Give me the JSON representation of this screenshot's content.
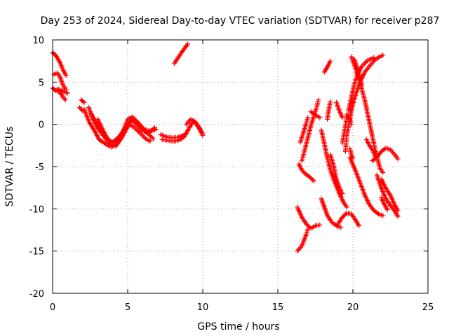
{
  "chart_data": {
    "type": "scatter",
    "title": "Day 253 of 2024, Sidereal Day-to-day VTEC variation (SDTVAR) for receiver p287",
    "xlabel": "GPS time / hours",
    "ylabel": "SDTVAR / TECUs",
    "xlim": [
      0,
      25
    ],
    "ylim": [
      -20,
      10
    ],
    "x_ticks": [
      0,
      5,
      10,
      15,
      20,
      25
    ],
    "y_ticks": [
      -20,
      -15,
      -10,
      -5,
      0,
      5,
      10
    ],
    "grid": true,
    "marker": "+",
    "color": "#ff0000",
    "series": [
      {
        "segments": [
          [
            [
              0.0,
              8.5
            ],
            [
              0.2,
              8.2
            ],
            [
              0.5,
              7.3
            ],
            [
              0.7,
              6.4
            ],
            [
              0.9,
              5.8
            ]
          ],
          [
            [
              0.1,
              5.9
            ],
            [
              0.3,
              6.1
            ],
            [
              0.5,
              5.6
            ],
            [
              0.7,
              4.6
            ],
            [
              0.9,
              4.1
            ]
          ],
          [
            [
              0.0,
              4.3
            ],
            [
              0.2,
              4.0
            ],
            [
              0.5,
              3.8
            ],
            [
              0.7,
              3.2
            ],
            [
              0.85,
              2.9
            ]
          ],
          [
            [
              0.3,
              4.2
            ],
            [
              0.5,
              4.1
            ],
            [
              0.8,
              3.8
            ],
            [
              1.0,
              3.7
            ]
          ],
          [
            [
              1.9,
              2.9
            ],
            [
              2.1,
              2.6
            ]
          ],
          [
            [
              1.8,
              2.0
            ],
            [
              2.0,
              1.6
            ]
          ],
          [
            [
              2.1,
              1.8
            ],
            [
              2.4,
              0.4
            ],
            [
              2.8,
              -0.8
            ],
            [
              3.1,
              -1.8
            ],
            [
              3.6,
              -2.4
            ],
            [
              3.9,
              -2.7
            ],
            [
              4.2,
              -2.4
            ],
            [
              4.6,
              -1.2
            ],
            [
              5.0,
              0.2
            ],
            [
              5.3,
              0.5
            ],
            [
              5.7,
              -0.2
            ],
            [
              6.0,
              -0.8
            ],
            [
              6.4,
              -1.0
            ],
            [
              6.8,
              -0.4
            ]
          ],
          [
            [
              2.4,
              2.0
            ],
            [
              2.7,
              0.6
            ],
            [
              3.1,
              -0.7
            ],
            [
              3.5,
              -1.6
            ],
            [
              3.8,
              -2.3
            ],
            [
              4.2,
              -2.6
            ],
            [
              4.6,
              -1.6
            ],
            [
              5.0,
              -0.3
            ],
            [
              5.3,
              0.6
            ],
            [
              5.6,
              0.3
            ],
            [
              6.0,
              -0.5
            ],
            [
              6.4,
              -1.2
            ],
            [
              6.7,
              -1.7
            ]
          ],
          [
            [
              2.6,
              1.2
            ],
            [
              3.0,
              -0.3
            ],
            [
              3.4,
              -1.2
            ],
            [
              3.7,
              -1.8
            ],
            [
              4.0,
              -2.1
            ],
            [
              4.4,
              -1.5
            ],
            [
              4.8,
              -0.6
            ],
            [
              5.1,
              0.0
            ],
            [
              5.4,
              -0.3
            ],
            [
              5.8,
              -1.0
            ],
            [
              6.2,
              -1.7
            ],
            [
              6.5,
              -2.0
            ]
          ],
          [
            [
              3.0,
              0.6
            ],
            [
              3.3,
              -0.5
            ],
            [
              3.6,
              -1.5
            ],
            [
              3.9,
              -2.2
            ],
            [
              4.3,
              -2.0
            ],
            [
              4.7,
              -0.8
            ],
            [
              5.0,
              0.6
            ],
            [
              5.3,
              0.9
            ],
            [
              5.7,
              0.2
            ],
            [
              6.1,
              -0.6
            ],
            [
              6.5,
              -0.8
            ],
            [
              6.9,
              -0.6
            ]
          ],
          [
            [
              7.2,
              -1.2
            ],
            [
              7.6,
              -1.5
            ],
            [
              8.0,
              -1.6
            ],
            [
              8.4,
              -1.5
            ],
            [
              8.8,
              -1.2
            ]
          ],
          [
            [
              7.3,
              -1.8
            ],
            [
              7.7,
              -1.9
            ],
            [
              8.1,
              -2.0
            ],
            [
              8.5,
              -1.8
            ],
            [
              8.8,
              -1.4
            ],
            [
              9.1,
              -0.4
            ],
            [
              9.4,
              0.4
            ],
            [
              9.7,
              -0.2
            ],
            [
              10.0,
              -1.1
            ]
          ],
          [
            [
              8.9,
              0.0
            ],
            [
              9.2,
              0.6
            ],
            [
              9.5,
              0.3
            ],
            [
              9.8,
              -0.6
            ],
            [
              10.0,
              -1.3
            ]
          ],
          [
            [
              8.1,
              7.2
            ],
            [
              8.4,
              8.0
            ],
            [
              8.7,
              8.8
            ],
            [
              9.0,
              9.5
            ]
          ],
          [
            [
              16.3,
              -9.8
            ],
            [
              16.6,
              -11.0
            ],
            [
              16.9,
              -11.8
            ],
            [
              17.2,
              -12.3
            ],
            [
              17.5,
              -12.0
            ],
            [
              17.8,
              -11.9
            ]
          ],
          [
            [
              16.3,
              -15.0
            ],
            [
              16.6,
              -14.4
            ],
            [
              16.9,
              -13.0
            ],
            [
              17.0,
              -12.4
            ]
          ],
          [
            [
              16.4,
              -4.7
            ],
            [
              16.6,
              -5.4
            ],
            [
              16.8,
              -5.8
            ],
            [
              17.1,
              -6.2
            ],
            [
              17.4,
              -6.7
            ]
          ],
          [
            [
              16.5,
              -2.1
            ],
            [
              16.7,
              -1.0
            ],
            [
              16.9,
              0.2
            ],
            [
              17.0,
              0.8
            ]
          ],
          [
            [
              16.6,
              -4.3
            ],
            [
              16.8,
              -3.0
            ],
            [
              17.0,
              -1.6
            ],
            [
              17.2,
              -0.2
            ],
            [
              17.4,
              1.0
            ],
            [
              17.6,
              2.1
            ],
            [
              17.7,
              2.9
            ]
          ],
          [
            [
              17.2,
              1.5
            ],
            [
              17.6,
              1.0
            ],
            [
              17.8,
              0.8
            ]
          ],
          [
            [
              17.9,
              -8.8
            ],
            [
              18.1,
              -9.8
            ],
            [
              18.3,
              -10.8
            ],
            [
              18.6,
              -11.6
            ],
            [
              19.0,
              -12.1
            ],
            [
              19.2,
              -12.2
            ]
          ],
          [
            [
              17.9,
              -0.7
            ],
            [
              18.1,
              -2.3
            ],
            [
              18.3,
              -4.0
            ],
            [
              18.5,
              -5.4
            ],
            [
              18.8,
              -6.9
            ],
            [
              19.1,
              -8.2
            ],
            [
              19.4,
              -9.3
            ],
            [
              19.6,
              -9.8
            ]
          ],
          [
            [
              18.3,
              0.6
            ],
            [
              18.4,
              1.8
            ],
            [
              18.5,
              2.7
            ]
          ],
          [
            [
              18.1,
              6.2
            ],
            [
              18.3,
              6.8
            ],
            [
              18.5,
              7.5
            ]
          ],
          [
            [
              18.5,
              -3.6
            ],
            [
              18.7,
              -4.8
            ],
            [
              18.9,
              -6.5
            ],
            [
              19.1,
              -7.5
            ],
            [
              19.3,
              -8.2
            ]
          ],
          [
            [
              19.0,
              -11.8
            ],
            [
              19.3,
              -11.0
            ],
            [
              19.6,
              -10.5
            ],
            [
              19.9,
              -10.6
            ],
            [
              20.2,
              -11.4
            ],
            [
              20.4,
              -12.0
            ]
          ],
          [
            [
              18.9,
              2.6
            ],
            [
              19.1,
              1.6
            ],
            [
              19.3,
              0.8
            ]
          ],
          [
            [
              19.5,
              -3.2
            ],
            [
              19.6,
              -1.3
            ],
            [
              19.8,
              0.7
            ],
            [
              20.0,
              2.4
            ],
            [
              20.2,
              3.6
            ],
            [
              20.5,
              5.1
            ],
            [
              20.8,
              6.2
            ],
            [
              21.2,
              7.1
            ],
            [
              21.5,
              7.7
            ],
            [
              21.8,
              8.0
            ],
            [
              22.0,
              8.2
            ]
          ],
          [
            [
              19.7,
              1.6
            ],
            [
              19.9,
              3.2
            ],
            [
              20.1,
              4.8
            ],
            [
              20.3,
              5.9
            ],
            [
              20.6,
              6.9
            ],
            [
              21.0,
              7.6
            ],
            [
              21.4,
              7.9
            ]
          ],
          [
            [
              19.3,
              -2.2
            ],
            [
              19.5,
              -0.2
            ],
            [
              19.6,
              0.9
            ]
          ],
          [
            [
              19.8,
              -2.9
            ],
            [
              19.9,
              -3.6
            ],
            [
              20.0,
              -4.0
            ]
          ],
          [
            [
              19.6,
              1.2
            ],
            [
              19.8,
              0.6
            ],
            [
              19.9,
              0.0
            ]
          ],
          [
            [
              19.9,
              8.0
            ],
            [
              20.2,
              6.5
            ],
            [
              20.5,
              4.8
            ],
            [
              20.8,
              2.8
            ],
            [
              21.0,
              1.1
            ],
            [
              21.2,
              -0.6
            ],
            [
              21.4,
              -2.3
            ],
            [
              21.6,
              -3.8
            ],
            [
              21.8,
              -5.2
            ],
            [
              22.0,
              -5.7
            ]
          ],
          [
            [
              20.1,
              7.7
            ],
            [
              20.4,
              6.0
            ],
            [
              20.6,
              4.6
            ]
          ],
          [
            [
              19.8,
              -3.9
            ],
            [
              20.2,
              -5.6
            ],
            [
              20.5,
              -7.0
            ],
            [
              20.8,
              -8.4
            ],
            [
              21.1,
              -9.5
            ],
            [
              21.4,
              -10.2
            ],
            [
              21.7,
              -10.6
            ],
            [
              22.0,
              -10.8
            ]
          ],
          [
            [
              20.9,
              -1.8
            ],
            [
              21.1,
              -2.5
            ],
            [
              21.3,
              -3.0
            ],
            [
              21.5,
              -3.8
            ]
          ],
          [
            [
              21.3,
              -4.3
            ],
            [
              21.6,
              -3.9
            ],
            [
              21.9,
              -3.2
            ],
            [
              22.2,
              -2.8
            ],
            [
              22.5,
              -3.0
            ],
            [
              22.8,
              -3.6
            ],
            [
              23.0,
              -4.1
            ]
          ],
          [
            [
              21.9,
              -6.5
            ],
            [
              22.2,
              -7.6
            ],
            [
              22.5,
              -8.4
            ],
            [
              22.8,
              -9.6
            ],
            [
              23.0,
              -10.2
            ]
          ],
          [
            [
              21.6,
              -6.0
            ],
            [
              21.9,
              -7.6
            ],
            [
              22.2,
              -8.8
            ],
            [
              22.5,
              -9.6
            ],
            [
              22.8,
              -10.3
            ],
            [
              23.0,
              -10.9
            ]
          ],
          [
            [
              21.9,
              -8.7
            ],
            [
              22.1,
              -9.5
            ],
            [
              22.3,
              -10.1
            ]
          ]
        ]
      }
    ]
  }
}
